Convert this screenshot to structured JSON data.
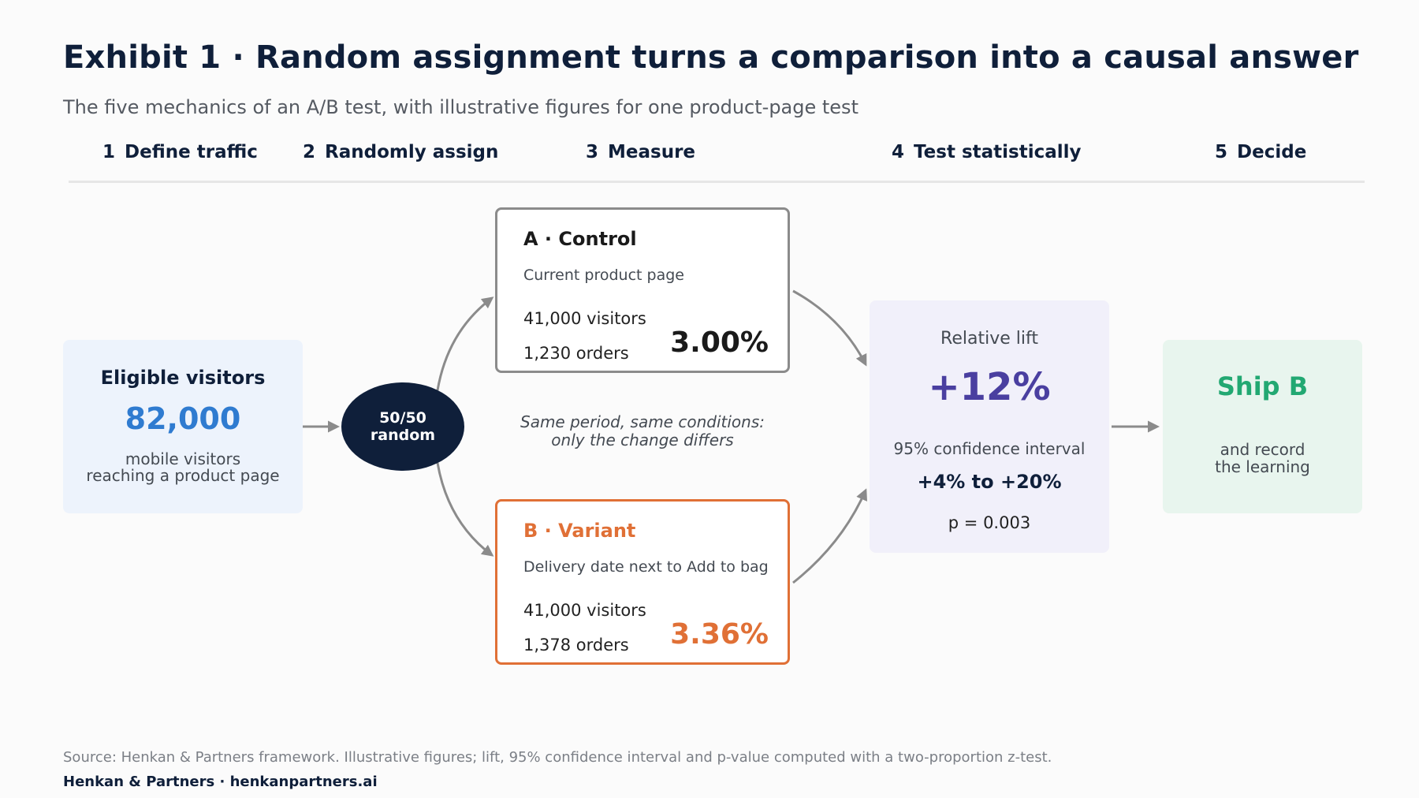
{
  "title": "Exhibit 1 · Random assignment turns a comparison into a causal answer",
  "subtitle": "The five mechanics of an A/B test, with illustrative figures for one product-page test",
  "steps": [
    {
      "num": "1",
      "label": "Define traffic"
    },
    {
      "num": "2",
      "label": "Randomly assign"
    },
    {
      "num": "3",
      "label": "Measure"
    },
    {
      "num": "4",
      "label": "Test statistically"
    },
    {
      "num": "5",
      "label": "Decide"
    }
  ],
  "eligible": {
    "title": "Eligible visitors",
    "value": "82,000",
    "desc_line1": "mobile visitors",
    "desc_line2": "reaching a product page"
  },
  "randomizer": {
    "line1": "50/50",
    "line2": "random"
  },
  "control": {
    "name": "A · Control",
    "desc": "Current product page",
    "visitors": "41,000 visitors",
    "orders": "1,230 orders",
    "rate": "3.00%"
  },
  "variant": {
    "name": "B · Variant",
    "desc": "Delivery date next to Add to bag",
    "visitors": "41,000 visitors",
    "orders": "1,378 orders",
    "rate": "3.36%"
  },
  "note": {
    "line1": "Same period, same conditions:",
    "line2": "only the change differs"
  },
  "stats": {
    "label": "Relative lift",
    "lift": "+12%",
    "ci_label": "95% confidence interval",
    "ci": "+4% to +20%",
    "p": "p = 0.003"
  },
  "decision": {
    "title": "Ship B",
    "desc_line1": "and record",
    "desc_line2": "the learning"
  },
  "footer": {
    "source": "Source: Henkan & Partners framework. Illustrative figures; lift, 95% confidence interval and p-value computed with a two-proportion z-test.",
    "brand": "Henkan & Partners · henkanpartners.ai"
  },
  "colors": {
    "navy": "#0f1f3a",
    "blue": "#2f7bd0",
    "orange": "#e07036",
    "purple": "#4a3fa0",
    "green": "#22a872",
    "arrow": "#8b8b8b"
  }
}
